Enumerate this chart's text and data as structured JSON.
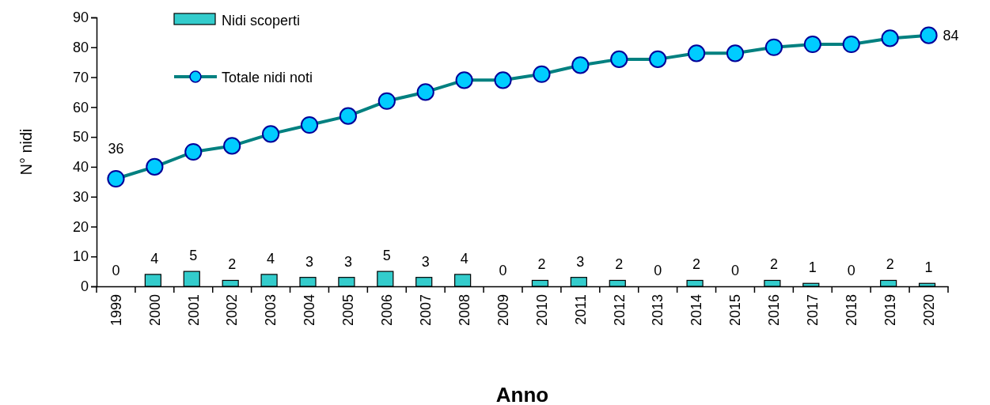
{
  "chart_data": {
    "type": "bar",
    "xlabel": "Anno",
    "ylabel": "N° nidi",
    "categories": [
      "1999",
      "2000",
      "2001",
      "2002",
      "2003",
      "2004",
      "2005",
      "2006",
      "2007",
      "2008",
      "2009",
      "2010",
      "2011",
      "2012",
      "2013",
      "2014",
      "2015",
      "2016",
      "2017",
      "2018",
      "2019",
      "2020"
    ],
    "ylim": [
      0,
      90
    ],
    "yticks": [
      0,
      10,
      20,
      30,
      40,
      50,
      60,
      70,
      80,
      90
    ],
    "legend": "top left",
    "marker": "circle",
    "grid": false,
    "series": [
      {
        "name": "Nidi scoperti",
        "color": "#33cccc",
        "values": [
          0,
          4,
          5,
          2,
          4,
          3,
          3,
          5,
          3,
          4,
          0,
          2,
          3,
          2,
          0,
          2,
          0,
          2,
          1,
          0,
          2,
          1
        ],
        "value_labels": [
          "0",
          "4",
          "5",
          "2",
          "4",
          "3",
          "3",
          "5",
          "3",
          "4",
          "0",
          "2",
          "3",
          "2",
          "0",
          "2",
          "0",
          "2",
          "1",
          "0",
          "2",
          "1"
        ]
      },
      {
        "name": "Totale nidi noti",
        "type": "line",
        "color": "#008080",
        "values": [
          36,
          40,
          45,
          47,
          51,
          54,
          57,
          62,
          65,
          69,
          69,
          71,
          74,
          76,
          76,
          78,
          78,
          80,
          81,
          81,
          83,
          84
        ],
        "value_labels": [
          "36",
          null,
          null,
          null,
          null,
          null,
          null,
          null,
          null,
          null,
          null,
          null,
          null,
          null,
          null,
          null,
          null,
          null,
          null,
          null,
          null,
          "84"
        ]
      }
    ]
  }
}
